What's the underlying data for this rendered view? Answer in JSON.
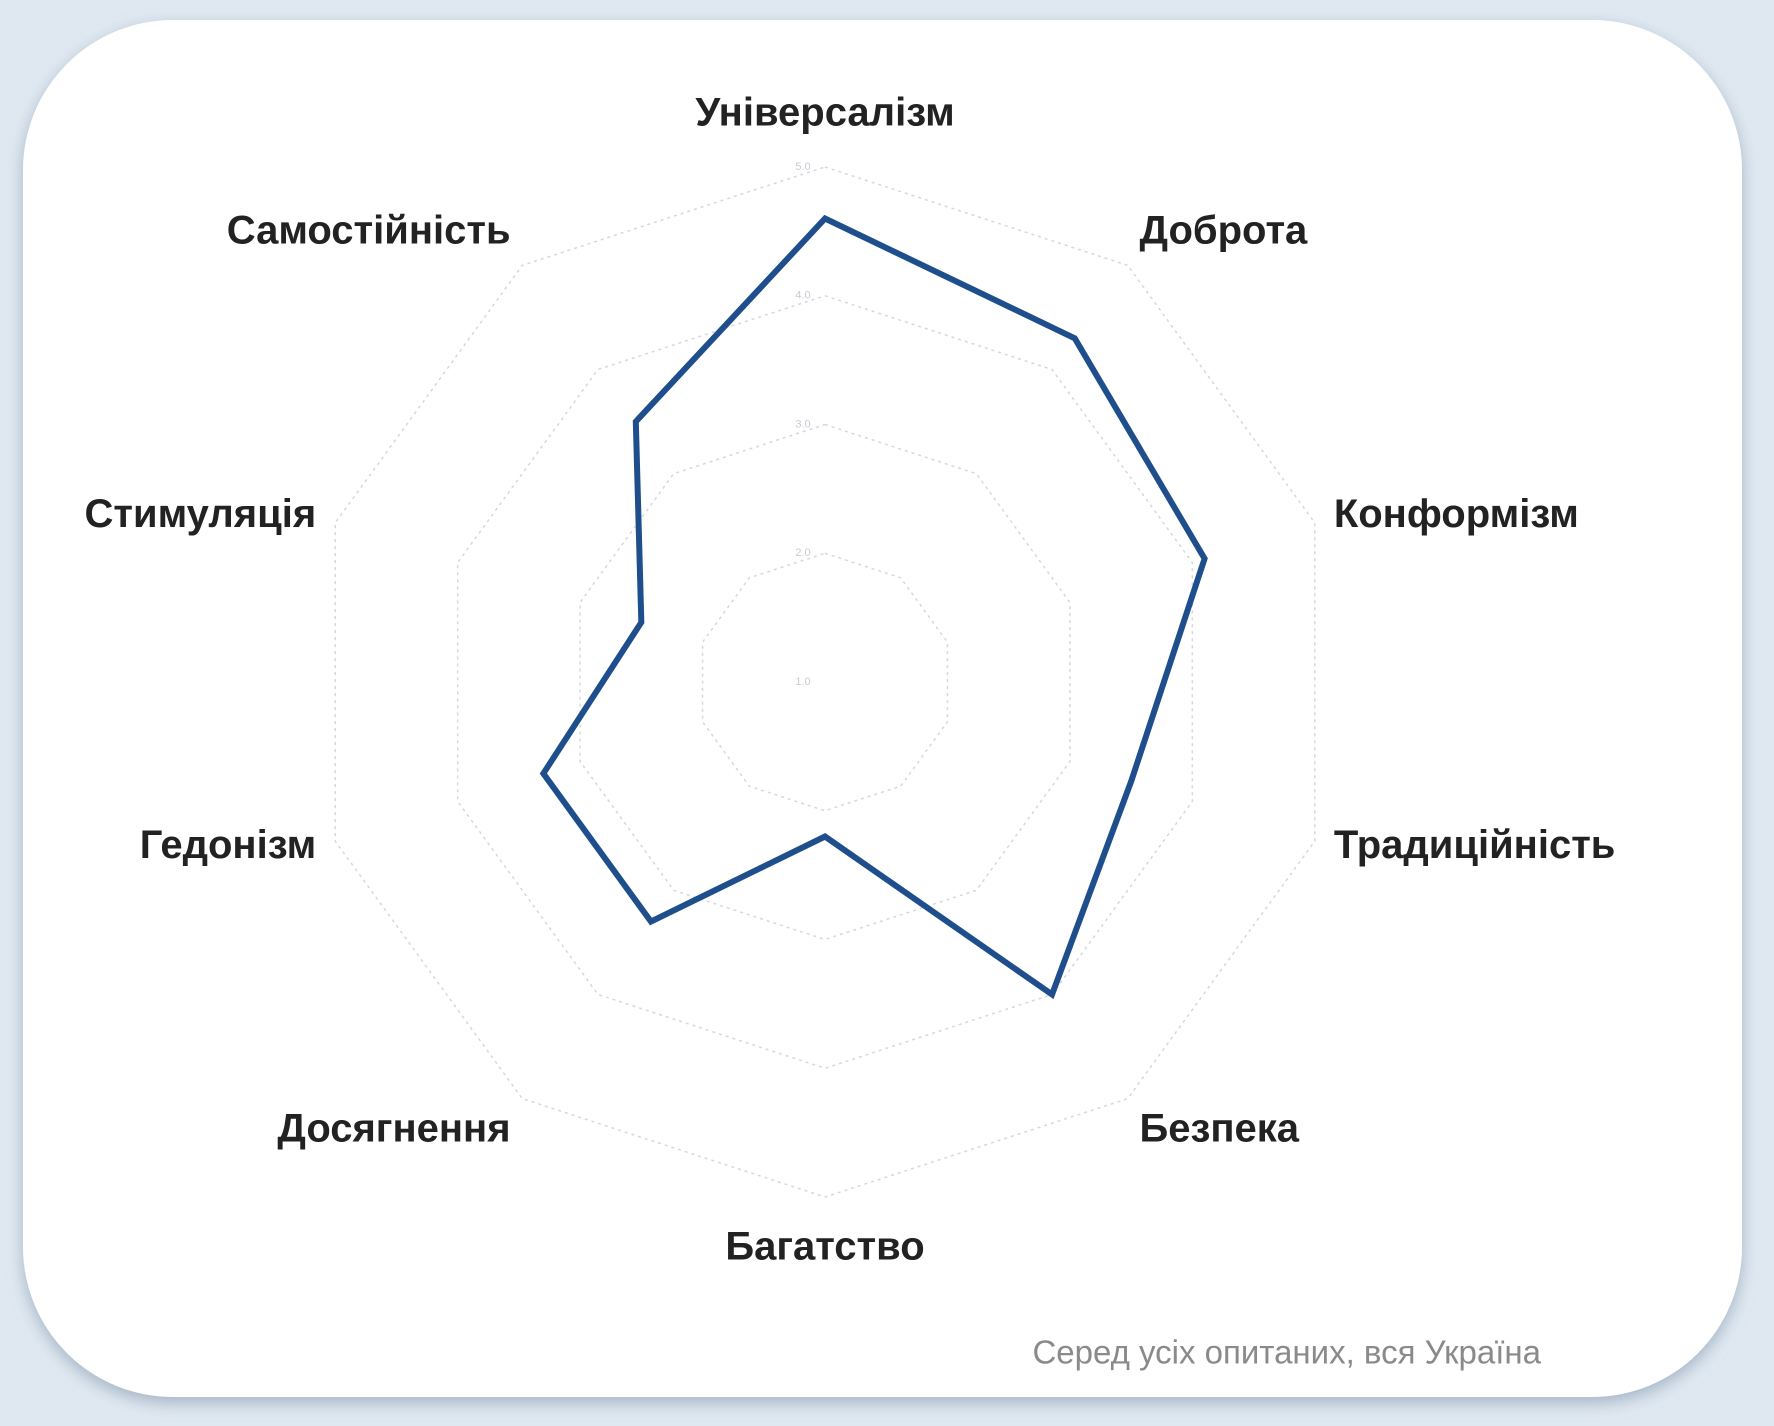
{
  "chart_data": {
    "type": "radar",
    "categories": [
      "Універсалізм",
      "Доброта",
      "Конформізм",
      "Традиційність",
      "Безпека",
      "Багатство",
      "Досягнення",
      "Гедонізм",
      "Стимуляція",
      "Самостійність"
    ],
    "series": [
      {
        "color": "#1f4e8c",
        "values": [
          4.6,
          4.3,
          4.1,
          3.5,
          4.0,
          2.2,
          3.3,
          3.3,
          2.5,
          3.5
        ]
      }
    ],
    "ylim": [
      1,
      5
    ],
    "yticks": [
      {
        "value": 1,
        "label": "1.0"
      },
      {
        "value": 2,
        "label": "2.0"
      },
      {
        "value": 3,
        "label": "3.0"
      },
      {
        "value": 4,
        "label": "4.0"
      },
      {
        "value": 5,
        "label": "5.0"
      }
    ],
    "grid": true,
    "note": "Серед усіх опитаних, вся Україна"
  }
}
